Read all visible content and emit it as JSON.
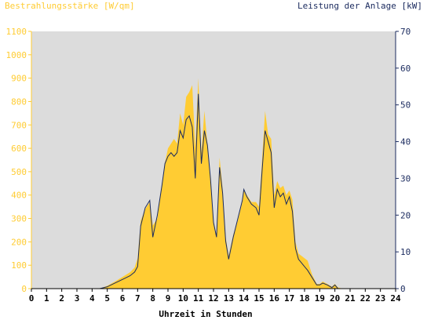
{
  "chart_data": {
    "type": "area",
    "left_axis_title": "Bestrahlungsstärke [W/qm]",
    "right_axis_title": "Leistung der Anlage [kW]",
    "xlabel": "Uhrzeit in Stunden",
    "x_ticks": [
      "0",
      "1",
      "2",
      "3",
      "4",
      "5",
      "6",
      "7",
      "8",
      "9",
      "10",
      "11",
      "12",
      "13",
      "14",
      "15",
      "16",
      "17",
      "18",
      "19",
      "20",
      "21",
      "22",
      "23",
      "24"
    ],
    "left_ticks": [
      "0",
      "100",
      "200",
      "300",
      "400",
      "500",
      "600",
      "700",
      "800",
      "900",
      "1000",
      "1100"
    ],
    "right_ticks": [
      "0",
      "10",
      "20",
      "30",
      "40",
      "50",
      "60",
      "70"
    ],
    "xlim": [
      0,
      24
    ],
    "ylim_left": [
      0,
      1100
    ],
    "ylim_right": [
      0,
      70
    ],
    "grid": false,
    "colors": {
      "plot_background": "#dcdcdc",
      "irradiance_fill": "#ffcc33",
      "power_line": "#1a2a5e",
      "left_axis_text": "#ffcc33",
      "right_axis_text": "#1a2a5e"
    },
    "series": [
      {
        "axis": "left",
        "style": "area",
        "x": [
          0,
          4.5,
          5,
          5.5,
          6,
          6.5,
          6.8,
          7,
          7.2,
          7.5,
          7.8,
          8,
          8.3,
          8.6,
          8.8,
          9,
          9.2,
          9.4,
          9.6,
          9.8,
          10,
          10.2,
          10.4,
          10.6,
          10.8,
          11,
          11.2,
          11.4,
          11.6,
          11.8,
          12,
          12.2,
          12.4,
          12.6,
          12.8,
          13,
          13.3,
          13.6,
          13.9,
          14,
          14.2,
          14.5,
          14.8,
          15,
          15.2,
          15.4,
          15.6,
          15.8,
          16,
          16.2,
          16.4,
          16.6,
          16.8,
          17,
          17.2,
          17.4,
          17.6,
          17.8,
          18,
          18.2,
          18.5,
          18.8,
          19,
          19.2,
          19.5,
          19.8,
          20,
          20.2,
          20.5,
          21,
          24
        ],
        "y": [
          0,
          0,
          12,
          30,
          50,
          70,
          90,
          130,
          290,
          340,
          370,
          270,
          300,
          450,
          540,
          600,
          620,
          640,
          620,
          750,
          700,
          820,
          840,
          870,
          600,
          900,
          580,
          760,
          620,
          460,
          280,
          230,
          560,
          430,
          220,
          140,
          230,
          290,
          370,
          420,
          400,
          370,
          370,
          350,
          550,
          760,
          660,
          640,
          400,
          460,
          430,
          440,
          400,
          420,
          380,
          200,
          150,
          140,
          130,
          120,
          60,
          20,
          20,
          30,
          20,
          8,
          20,
          5,
          0,
          0,
          0
        ]
      },
      {
        "axis": "right",
        "style": "line",
        "x": [
          0,
          4.5,
          5,
          5.5,
          6,
          6.5,
          6.8,
          7,
          7.2,
          7.5,
          7.8,
          8,
          8.3,
          8.6,
          8.8,
          9,
          9.2,
          9.4,
          9.6,
          9.8,
          10,
          10.2,
          10.4,
          10.6,
          10.8,
          11,
          11.2,
          11.4,
          11.6,
          11.8,
          12,
          12.2,
          12.4,
          12.6,
          12.8,
          13,
          13.3,
          13.6,
          13.9,
          14,
          14.2,
          14.5,
          14.8,
          15,
          15.2,
          15.4,
          15.6,
          15.8,
          16,
          16.2,
          16.4,
          16.6,
          16.8,
          17,
          17.2,
          17.4,
          17.6,
          17.8,
          18,
          18.2,
          18.5,
          18.8,
          19,
          19.2,
          19.5,
          19.8,
          20,
          20.2,
          20.5,
          21,
          24
        ],
        "y": [
          0,
          0,
          0.5,
          1.5,
          2.5,
          3.5,
          4.5,
          6,
          17,
          22,
          24,
          14,
          20,
          28,
          34,
          36,
          37,
          36,
          37,
          43,
          41,
          46,
          47,
          44,
          30,
          53,
          34,
          43,
          39,
          30,
          18,
          14,
          33,
          26,
          13,
          8,
          14,
          19,
          24,
          27,
          25,
          23,
          22,
          20,
          32,
          43,
          40,
          37,
          22,
          27,
          25,
          26,
          23,
          25,
          21,
          11,
          8,
          7,
          6,
          5,
          3,
          1,
          1,
          1.5,
          1,
          0.3,
          1,
          0,
          0,
          0,
          0
        ]
      }
    ]
  }
}
